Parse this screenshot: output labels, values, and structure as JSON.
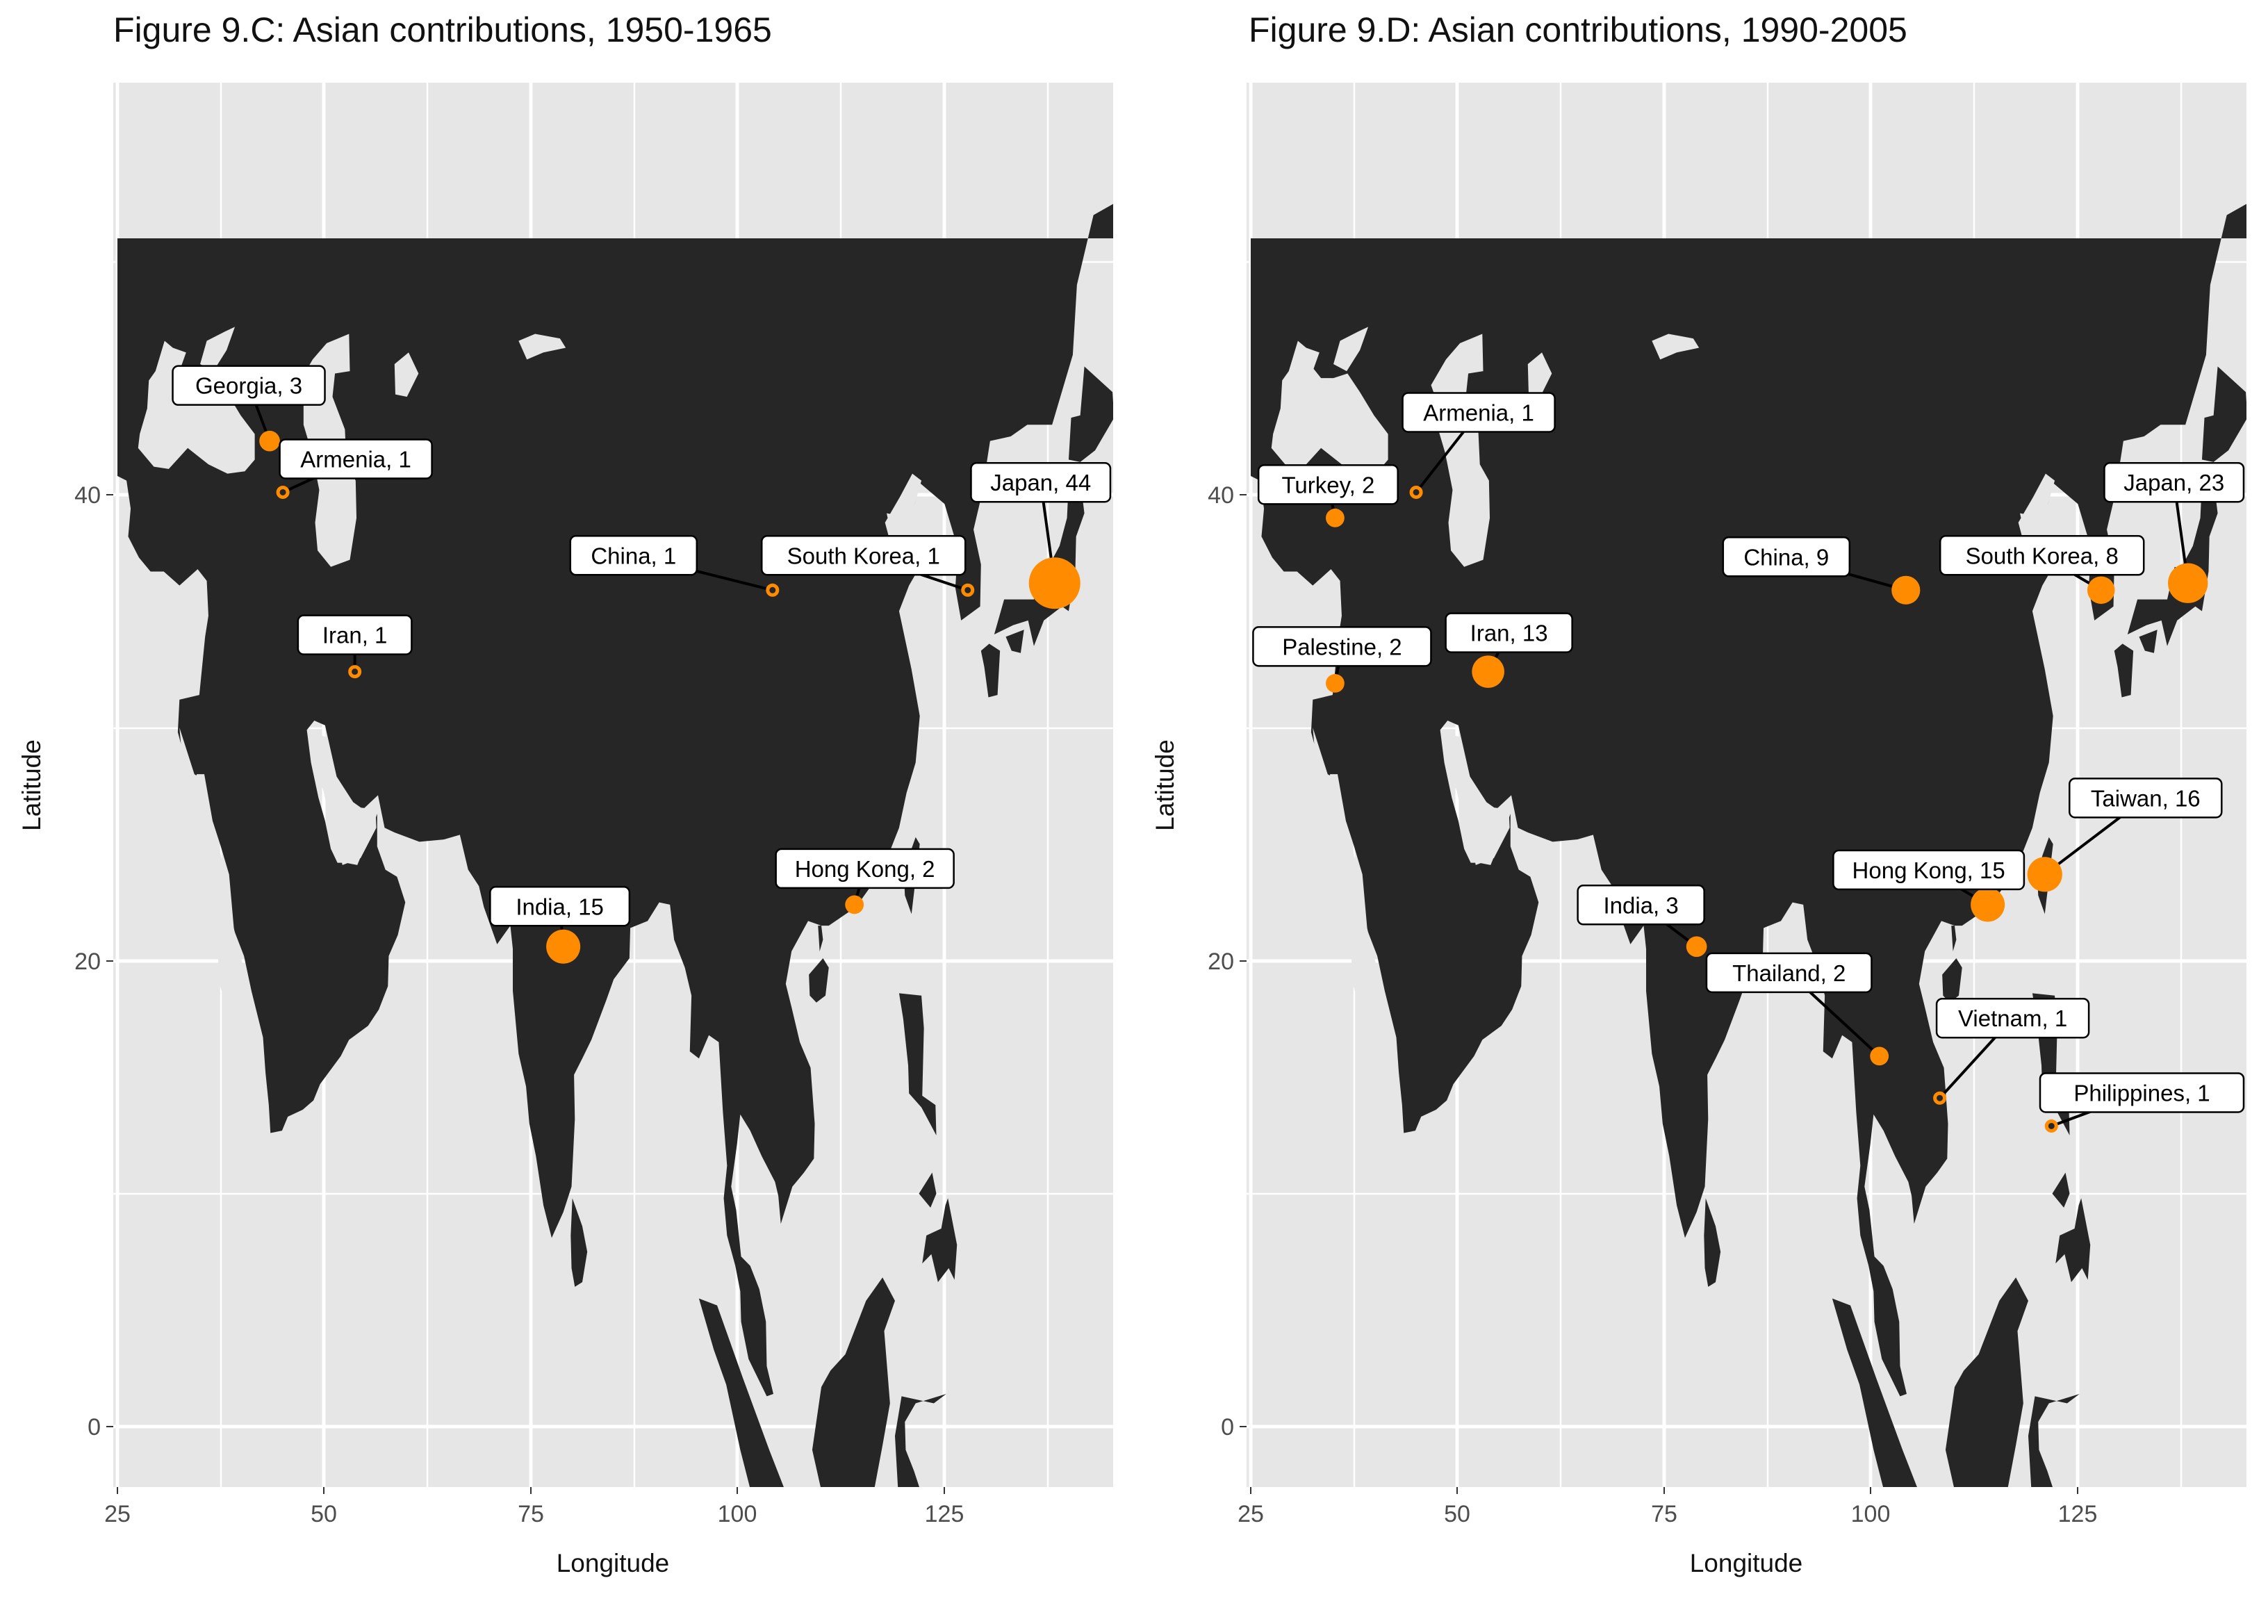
{
  "panels": [
    {
      "title": "Figure 9.C: Asian contributions, 1950-1965",
      "xlabel": "Longitude",
      "ylabel": "Latitude",
      "x_ticks": [
        "25",
        "50",
        "75",
        "100",
        "125"
      ],
      "y_ticks": [
        "40",
        "20",
        "0"
      ],
      "points": [
        {
          "label": "Georgia, 3",
          "country": "Georgia",
          "count": 3,
          "lon": 43.4,
          "lat": 42.3
        },
        {
          "label": "Armenia, 1",
          "country": "Armenia",
          "count": 1,
          "lon": 45.0,
          "lat": 40.1
        },
        {
          "label": "Iran, 1",
          "country": "Iran",
          "count": 1,
          "lon": 53.7,
          "lat": 32.4
        },
        {
          "label": "China, 1",
          "country": "China",
          "count": 1,
          "lon": 104.2,
          "lat": 35.9
        },
        {
          "label": "South Korea, 1",
          "country": "South Korea",
          "count": 1,
          "lon": 127.8,
          "lat": 35.9
        },
        {
          "label": "Japan, 44",
          "country": "Japan",
          "count": 44,
          "lon": 138.3,
          "lat": 36.2
        },
        {
          "label": "India, 15",
          "country": "India",
          "count": 15,
          "lon": 78.9,
          "lat": 20.6
        },
        {
          "label": "Hong Kong, 2",
          "country": "Hong Kong",
          "count": 2,
          "lon": 114.1,
          "lat": 22.4
        }
      ]
    },
    {
      "title": "Figure 9.D: Asian contributions, 1990-2005",
      "xlabel": "Longitude",
      "ylabel": "Latitude",
      "x_ticks": [
        "25",
        "50",
        "75",
        "100",
        "125"
      ],
      "y_ticks": [
        "40",
        "20",
        "0"
      ],
      "points": [
        {
          "label": "Armenia, 1",
          "country": "Armenia",
          "count": 1,
          "lon": 45.0,
          "lat": 40.1
        },
        {
          "label": "Turkey, 2",
          "country": "Turkey",
          "count": 2,
          "lon": 35.2,
          "lat": 39.0
        },
        {
          "label": "Palestine, 2",
          "country": "Palestine",
          "count": 2,
          "lon": 35.2,
          "lat": 31.9
        },
        {
          "label": "Iran, 13",
          "country": "Iran",
          "count": 13,
          "lon": 53.7,
          "lat": 32.4
        },
        {
          "label": "China, 9",
          "country": "China",
          "count": 9,
          "lon": 104.2,
          "lat": 35.9
        },
        {
          "label": "South Korea, 8",
          "country": "South Korea",
          "count": 8,
          "lon": 127.8,
          "lat": 35.9
        },
        {
          "label": "Japan, 23",
          "country": "Japan",
          "count": 23,
          "lon": 138.3,
          "lat": 36.2
        },
        {
          "label": "Taiwan, 16",
          "country": "Taiwan",
          "count": 16,
          "lon": 121.0,
          "lat": 23.7
        },
        {
          "label": "Hong Kong, 15",
          "country": "Hong Kong",
          "count": 15,
          "lon": 114.1,
          "lat": 22.4
        },
        {
          "label": "India, 3",
          "country": "India",
          "count": 3,
          "lon": 78.9,
          "lat": 20.6
        },
        {
          "label": "Thailand, 2",
          "country": "Thailand",
          "count": 2,
          "lon": 101.0,
          "lat": 15.9
        },
        {
          "label": "Vietnam, 1",
          "country": "Vietnam",
          "count": 1,
          "lon": 108.3,
          "lat": 14.1
        },
        {
          "label": "Philippines, 1",
          "country": "Philippines",
          "count": 1,
          "lon": 121.8,
          "lat": 12.9
        }
      ]
    }
  ],
  "colors": {
    "point": "#ff8c00",
    "land": "#262626",
    "background": "#e6e6e6",
    "grid": "#ffffff"
  }
}
